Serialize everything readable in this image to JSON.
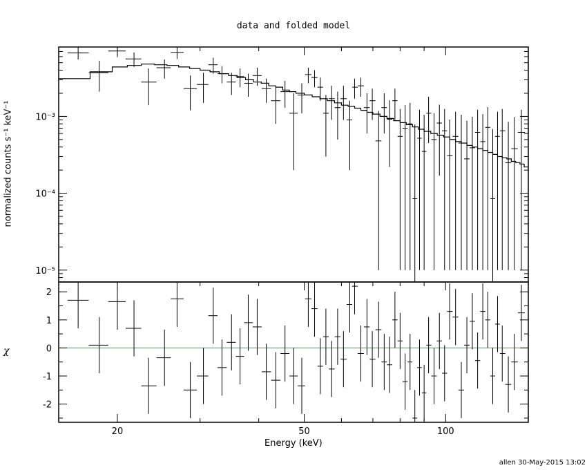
{
  "title": "data and folded model",
  "footer": "allen 30-May-2015 13:02",
  "chart_data": [
    {
      "type": "scatter",
      "panel": "spectrum",
      "xlabel": "Energy (keV)",
      "ylabel": "normalized counts s⁻¹ keV⁻¹",
      "xscale": "log",
      "yscale": "log",
      "xlim": [
        15,
        150
      ],
      "ylim": [
        7e-06,
        0.008
      ],
      "y_ticks": [
        "10⁻³",
        "10⁻⁴",
        "10⁻⁵"
      ],
      "x": [
        16.5,
        18.3,
        20.0,
        21.7,
        23.3,
        25.2,
        26.8,
        28.6,
        30.5,
        32.0,
        33.4,
        35.0,
        36.5,
        38.0,
        39.7,
        41.5,
        43.5,
        45.5,
        47.5,
        49.4,
        51.0,
        52.6,
        54.1,
        55.6,
        57.2,
        58.9,
        60.6,
        62.5,
        64.0,
        66.0,
        68.0,
        69.8,
        72.0,
        74.0,
        76.0,
        78.0,
        80.0,
        82.0,
        84.0,
        86.0,
        88.0,
        90.0,
        92.0,
        94.5,
        97.0,
        99.5,
        102,
        105,
        108,
        111,
        114,
        117,
        120,
        123,
        126,
        129,
        132,
        136,
        140,
        145
      ],
      "y": [
        0.0067,
        0.0037,
        0.0071,
        0.0056,
        0.0028,
        0.0043,
        0.0068,
        0.0023,
        0.0026,
        0.0047,
        0.0036,
        0.0028,
        0.0033,
        0.0027,
        0.0034,
        0.0023,
        0.0016,
        0.0021,
        0.0011,
        0.0019,
        0.0035,
        0.0032,
        0.0024,
        0.0011,
        0.0017,
        0.0013,
        0.0017,
        0.0009,
        0.0024,
        0.0025,
        0.0013,
        0.0016,
        0.00048,
        0.0013,
        0.00092,
        0.0016,
        0.00055,
        0.0007,
        0.0008,
        8.5e-05,
        0.00052,
        0.00035,
        0.0011,
        0.0005,
        0.00082,
        0.00065,
        0.00031,
        0.00055,
        0.00045,
        0.00028,
        0.00039,
        0.00062,
        0.00047,
        0.00072,
        8.5e-05,
        0.00055,
        0.00065,
        0.00025,
        0.00038,
        0.00062
      ],
      "yerr_low": [
        0.0012,
        0.0016,
        0.0012,
        0.0012,
        0.0014,
        0.0012,
        0.0012,
        0.0011,
        0.0011,
        0.0011,
        0.0009,
        0.0009,
        0.0009,
        0.0009,
        0.0009,
        0.0008,
        0.0008,
        0.0008,
        0.0009,
        0.0008,
        0.0008,
        0.0008,
        0.0008,
        0.0008,
        0.0008,
        0.0008,
        0.0008,
        0.0007,
        0.0007,
        0.0007,
        0.0007,
        0.0007,
        0.00047,
        0.0007,
        0.0007,
        0.0007,
        0.00054,
        0.00069,
        0.00079,
        8.4e-05,
        0.00051,
        0.00034,
        0.00065,
        0.00049,
        0.00065,
        0.00064,
        0.0003,
        0.00054,
        0.00044,
        0.00027,
        0.00038,
        0.00061,
        0.00046,
        0.00071,
        8.4e-05,
        0.00054,
        0.00064,
        0.00024,
        0.00037,
        0.00061
      ],
      "yerr_high": [
        0.0012,
        0.0016,
        0.0012,
        0.0012,
        0.0014,
        0.0012,
        0.0012,
        0.0011,
        0.0011,
        0.0011,
        0.0009,
        0.0009,
        0.0009,
        0.0009,
        0.0009,
        0.0008,
        0.0008,
        0.0008,
        0.0009,
        0.0008,
        0.0008,
        0.0008,
        0.0008,
        0.0008,
        0.0008,
        0.0008,
        0.0008,
        0.0007,
        0.0007,
        0.0007,
        0.0007,
        0.0007,
        0.0007,
        0.0007,
        0.0007,
        0.0007,
        0.0007,
        0.0007,
        0.0007,
        0.0007,
        0.0007,
        0.0007,
        0.0007,
        0.0006,
        0.0006,
        0.0006,
        0.0006,
        0.0006,
        0.0006,
        0.0006,
        0.0006,
        0.0006,
        0.0006,
        0.0006,
        0.0006,
        0.0006,
        0.0006,
        0.0006,
        0.0006,
        0.0006
      ],
      "model_edges": [
        15,
        17.5,
        19.5,
        21,
        22.5,
        24,
        25.5,
        27,
        28.5,
        30,
        31.5,
        33,
        34.5,
        36,
        37.5,
        39,
        40.5,
        42,
        43.5,
        45,
        46.5,
        48,
        50,
        52,
        54,
        56,
        58,
        60,
        62,
        64,
        66,
        68,
        70,
        72.5,
        75,
        77.5,
        80,
        82.5,
        85,
        87.5,
        90,
        93,
        96,
        99,
        102,
        105,
        108,
        111,
        114,
        117,
        120,
        123,
        126,
        129,
        132,
        135,
        138,
        141,
        144,
        147,
        150
      ],
      "model_values": [
        0.0031,
        0.0038,
        0.0044,
        0.0046,
        0.0048,
        0.0047,
        0.0046,
        0.0044,
        0.0042,
        0.004,
        0.0038,
        0.0036,
        0.0034,
        0.0032,
        0.003,
        0.0028,
        0.0027,
        0.0025,
        0.0024,
        0.0022,
        0.0021,
        0.002,
        0.0019,
        0.0018,
        0.0017,
        0.0016,
        0.0015,
        0.0014,
        0.00135,
        0.00128,
        0.0012,
        0.00113,
        0.00107,
        0.001,
        0.00094,
        0.00088,
        0.00083,
        0.00078,
        0.00073,
        0.00068,
        0.00064,
        0.0006,
        0.00057,
        0.00054,
        0.0005,
        0.00047,
        0.00045,
        0.00042,
        0.0004,
        0.00038,
        0.00036,
        0.00034,
        0.00032,
        0.0003,
        0.00029,
        0.00028,
        0.00026,
        0.00025,
        0.00024,
        0.00022
      ]
    },
    {
      "type": "scatter",
      "panel": "residuals",
      "xlabel": "Energy (keV)",
      "ylabel": "χ",
      "xscale": "log",
      "xlim": [
        15,
        150
      ],
      "ylim": [
        -2.65,
        2.35
      ],
      "x_ticks": [
        20,
        50,
        100
      ],
      "y_ticks": [
        -2,
        -1,
        0,
        1,
        2
      ],
      "zero_line_color": "#00cc00",
      "x": [
        16.5,
        18.3,
        20.0,
        21.7,
        23.3,
        25.2,
        26.8,
        28.6,
        30.5,
        32.0,
        33.4,
        35.0,
        36.5,
        38.0,
        39.7,
        41.5,
        43.5,
        45.5,
        47.5,
        49.4,
        51.0,
        52.6,
        54.1,
        55.6,
        57.2,
        58.9,
        60.6,
        62.5,
        64.0,
        66.0,
        68.0,
        69.8,
        72.0,
        74.0,
        76.0,
        78.0,
        80.0,
        82.0,
        84.0,
        86.0,
        88.0,
        90.0,
        92.0,
        94.5,
        97.0,
        99.5,
        102,
        105,
        108,
        111,
        114,
        117,
        120,
        123,
        126,
        129,
        132,
        136,
        140,
        145
      ],
      "y": [
        1.7,
        0.1,
        1.65,
        0.7,
        -1.35,
        -0.35,
        1.75,
        -1.5,
        -1.0,
        1.15,
        -0.7,
        0.2,
        -0.3,
        0.9,
        0.75,
        -0.85,
        -1.15,
        -0.2,
        -1.0,
        -1.35,
        1.75,
        1.4,
        -0.65,
        0.4,
        -0.75,
        0.4,
        -0.4,
        1.55,
        2.2,
        -0.2,
        0.75,
        -0.4,
        0.65,
        -0.5,
        -0.6,
        1.0,
        0.25,
        -1.2,
        -0.5,
        -2.5,
        -0.7,
        -1.6,
        0.1,
        -1.0,
        0.25,
        -0.9,
        1.3,
        1.1,
        -1.5,
        0.1,
        0.95,
        -0.45,
        1.3,
        1.0,
        -1.0,
        0.85,
        -0.2,
        -1.3,
        -0.5,
        1.25
      ],
      "err": [
        1.0,
        1.0,
        1.0,
        1.0,
        1.0,
        1.0,
        1.0,
        1.0,
        1.0,
        1.0,
        1.0,
        1.0,
        1.0,
        1.0,
        1.0,
        1.0,
        1.0,
        1.0,
        1.0,
        1.0,
        1.0,
        1.0,
        1.0,
        1.0,
        1.0,
        1.0,
        1.0,
        1.0,
        1.0,
        1.0,
        1.0,
        1.0,
        1.0,
        1.0,
        1.0,
        1.0,
        1.0,
        1.0,
        1.0,
        1.0,
        1.0,
        1.0,
        1.0,
        1.0,
        1.0,
        1.0,
        1.0,
        1.0,
        1.0,
        1.0,
        1.0,
        1.0,
        1.0,
        1.0,
        1.0,
        1.0,
        1.0,
        1.0,
        1.0,
        1.0
      ]
    }
  ]
}
